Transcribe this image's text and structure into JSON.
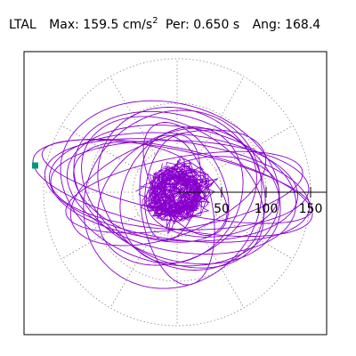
{
  "header": {
    "station": "LTAL",
    "max_label": "Max:",
    "max_value": "159.5",
    "max_unit": "cm/s",
    "max_unit_exp": "2",
    "per_label": "Per:",
    "per_value": "0.650",
    "per_unit": "s",
    "ang_label": "Ang:",
    "ang_value": "168.4"
  },
  "chart_data": {
    "type": "scatter",
    "title": "",
    "xlabel": "",
    "ylabel": "",
    "xlim": [
      -165,
      165
    ],
    "ylim": [
      -165,
      165
    ],
    "ticks": [
      50,
      100,
      150
    ],
    "tick_labels": [
      "50",
      "100",
      "150"
    ],
    "polar_rings": [
      50,
      100,
      150
    ],
    "polar_spokes_deg": [
      0,
      30,
      60,
      90,
      120,
      150,
      180,
      210,
      240,
      270,
      300,
      330
    ],
    "grid": true,
    "marker": {
      "x": -159.5,
      "y": 30
    },
    "series_color": "#8800cc",
    "marker_color": "#009977",
    "grid_color": "#888888",
    "orbit": {
      "ellipses": [
        {
          "a": 160,
          "b": 45,
          "angle": 168.4,
          "cx": -5,
          "cy": 5
        },
        {
          "a": 150,
          "b": 55,
          "angle": 172,
          "cx": 0,
          "cy": 2
        },
        {
          "a": 140,
          "b": 60,
          "angle": 175,
          "cx": -4,
          "cy": 6
        },
        {
          "a": 130,
          "b": 70,
          "angle": 170,
          "cx": 5,
          "cy": 3
        },
        {
          "a": 120,
          "b": 80,
          "angle": 160,
          "cx": 0,
          "cy": 5
        },
        {
          "a": 110,
          "b": 75,
          "angle": 150,
          "cx": -5,
          "cy": 0
        },
        {
          "a": 100,
          "b": 85,
          "angle": 140,
          "cx": 5,
          "cy": 4
        },
        {
          "a": 145,
          "b": 50,
          "angle": 178,
          "cx": 3,
          "cy": 8
        },
        {
          "a": 125,
          "b": 90,
          "angle": 165,
          "cx": -8,
          "cy": 10
        },
        {
          "a": 135,
          "b": 40,
          "angle": 10,
          "cx": 8,
          "cy": 0
        },
        {
          "a": 95,
          "b": 70,
          "angle": 30,
          "cx": 0,
          "cy": -5
        },
        {
          "a": 115,
          "b": 55,
          "angle": 20,
          "cx": -10,
          "cy": 5
        },
        {
          "a": 80,
          "b": 65,
          "angle": 60,
          "cx": 5,
          "cy": -3
        },
        {
          "a": 155,
          "b": 35,
          "angle": 168,
          "cx": 0,
          "cy": 12
        },
        {
          "a": 105,
          "b": 95,
          "angle": 45,
          "cx": -5,
          "cy": -8
        },
        {
          "a": 90,
          "b": 50,
          "angle": 160,
          "cx": -30,
          "cy": 0
        },
        {
          "a": 75,
          "b": 45,
          "angle": 5,
          "cx": 40,
          "cy": -5
        },
        {
          "a": 85,
          "b": 40,
          "angle": 100,
          "cx": 0,
          "cy": -20
        },
        {
          "a": 70,
          "b": 38,
          "angle": 120,
          "cx": 10,
          "cy": 15
        },
        {
          "a": 60,
          "b": 30,
          "angle": 80,
          "cx": -5,
          "cy": 5
        }
      ],
      "core_radius": 30,
      "core_loops": 60
    }
  }
}
